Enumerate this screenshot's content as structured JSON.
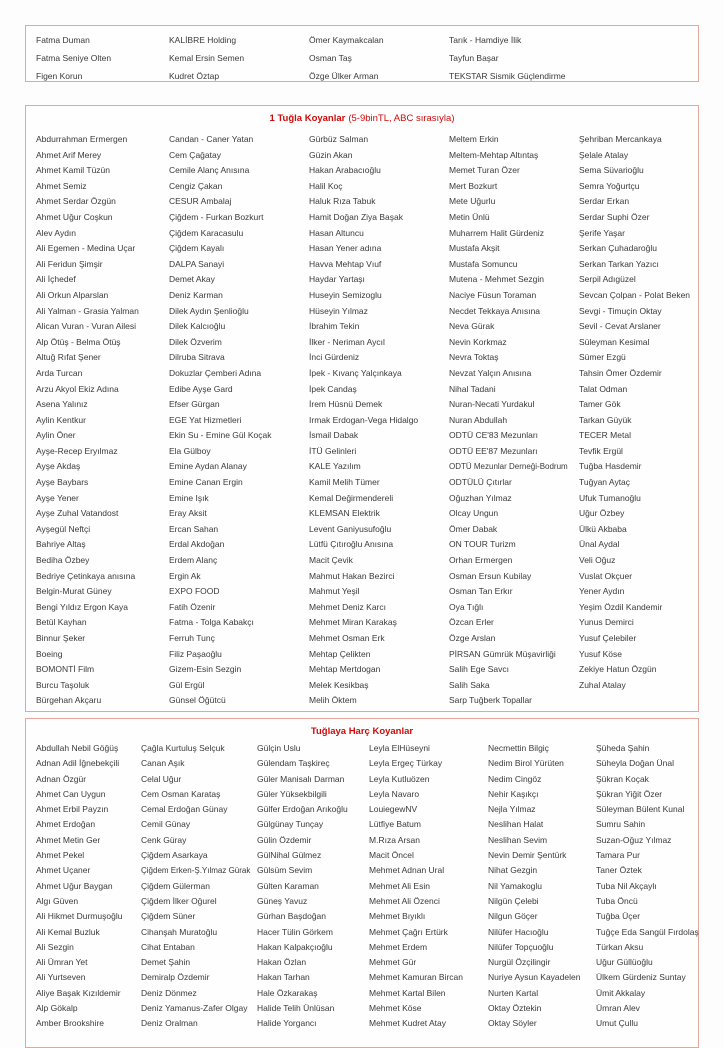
{
  "page": {
    "background": "#fdfdfd",
    "text_color": "#3a3a3a",
    "accent_red": "#cf0a0a",
    "border_color": "#e3a79e"
  },
  "section_top": {
    "columns": [
      [
        "Fatma Duman",
        "Fatma Seniye Olten",
        "Figen Korun"
      ],
      [
        "KALİBRE Holding",
        "Kemal Ersin Semen",
        "Kudret Öztap"
      ],
      [
        "Ömer Kaymakcalan",
        "Osman Taş",
        "Özge Ülker Arman"
      ],
      [
        "Tarık - Hamdiye İlik",
        "Tayfun Başar",
        "TEKSTAR Sismik Güçlendirme"
      ],
      []
    ]
  },
  "section_one_brick": {
    "title_bold": "1 Tuğla Koyanlar",
    "title_note": "(5-9binTL, ABC sırasıyla)",
    "columns": [
      [
        "Abdurrahman Ermergen",
        "Ahmet Arif Merey",
        "Ahmet Kamil Tüzün",
        "Ahmet Semiz",
        "Ahmet Serdar Özgün",
        "Ahmet Uğur Coşkun",
        "Alev Aydın",
        "Ali Egemen - Medina Uçar",
        "Ali Feridun Şimşir",
        "Ali İçhedef",
        "Ali Orkun Alparslan",
        "Ali Yalman - Grasia Yalman",
        "Alican Vuran - Vuran Ailesi",
        "Alp Ötüş - Belma Ötüş",
        "Altuğ Rıfat Şener",
        "Arda Turcan",
        "Arzu Akyol Ekiz Adına",
        "Asena Yalınız",
        "Aylin Kentkur",
        "Aylin Öner",
        "Ayşe-Recep Eryılmaz",
        "Ayşe Akdaş",
        "Ayşe Baybars",
        "Ayşe Yener",
        "Ayşe Zuhal Vatandost",
        "Ayşegül Neftçi",
        "Bahriye Altaş",
        "Bediha Özbey",
        "Bedriye Çetinkaya anısına",
        "Belgin-Murat Güney",
        "Bengi Yıldız Ergon Kaya",
        "Betül Kayhan",
        "Binnur Şeker",
        "Boeing",
        "BOMONTİ Film",
        "Burcu Taşoluk",
        "Bürgehan Akçaru"
      ],
      [
        "Candan - Caner Yatan",
        "Cem Çağatay",
        "Cemile Alanç Anısına",
        "Cengiz Çakan",
        "CESUR Ambalaj",
        "Çiğdem - Furkan Bozkurt",
        "Çiğdem Karacasulu",
        "Çiğdem Kayalı",
        "DALPA Sanayi",
        "Demet Akay",
        "Deniz Karman",
        "Dilek Aydın Şenlioğlu",
        "Dilek Kalcıoğlu",
        "Dilek Özverim",
        "Dilruba Sitrava",
        "Dokuzlar Çemberi Adına",
        "Edibe Ayşe Gard",
        "Efser Gürgan",
        "EGE Yat Hizmetleri",
        "Ekin Su - Emine Gül Koçak",
        "Ela Gülboy",
        "Emine Aydan Alanay",
        "Emine Canan Ergin",
        "Emine Işık",
        "Eray Aksit",
        "Ercan Sahan",
        "Erdal Akdoğan",
        "Erdem Alanç",
        "Ergin Ak",
        "EXPO FOOD",
        "Fatih Özenir",
        "Fatma - Tolga Kabakçı",
        "Ferruh Tunç",
        "Filiz Paşaoğlu",
        "Gizem-Esin Sezgin",
        "Gül Ergül",
        "Günsel Öğütcü"
      ],
      [
        "Gürbüz Salman",
        "Güzin Akan",
        "Hakan Arabacıoğlu",
        "Halil Koç",
        "Haluk Rıza Tabuk",
        "Hamit Doğan Ziya Başak",
        "Hasan Altuncu",
        "Hasan Yener adına",
        "Havva Mehtap Vıuf",
        "Haydar Yartaşı",
        "Huseyin Semizoglu",
        "Hüseyin Yılmaz",
        "İbrahim Tekin",
        "İlker - Neriman Aycıl",
        "İnci Gürdeniz",
        "İpek - Kıvanç Yalçınkaya",
        "İpek Candaş",
        "İrem Hüsnü Demek",
        "Irmak Erdogan-Vega Hidalgo",
        "İsmail Dabak",
        "İTÜ Gelinleri",
        "KALE Yazılım",
        "Kamil Melih Tümer",
        "Kemal Değirmendereli",
        "KLEMSAN Elektrik",
        "Levent Ganiyusufoğlu",
        "Lütfü Çıtıroğlu Anısına",
        "Macit Çevik",
        "Mahmut Hakan Bezirci",
        "Mahmut Yeşil",
        "Mehmet Deniz Karcı",
        "Mehmet Miran Karakaş",
        "Mehmet Osman Erk",
        "Mehtap Çelikten",
        "Mehtap Mertdogan",
        "Melek Kesikbaş",
        "Melih Öktem"
      ],
      [
        "Meltem Erkin",
        "Meltem-Mehtap Altıntaş",
        "Memet Turan Özer",
        "Mert Bozkurt",
        "Mete Uğurlu",
        "Metin Ünlü",
        "Muharrem Halit Gürdeniz",
        "Mustafa Akşit",
        "Mustafa Somuncu",
        "Mutena - Mehmet Sezgin",
        "Naciye Füsun Toraman",
        "Necdet Tekkaya Anısına",
        "Neva Gürak",
        "Nevin Korkmaz",
        "Nevra Toktaş",
        "Nevzat Yalçın Anısına",
        "Nihal Tadani",
        "Nuran-Necati Yurdakul",
        "Nuran Abdullah",
        "ODTÜ CE'83 Mezunları",
        "ODTÜ EE'87 Mezunları",
        "ODTÜ Mezunlar Derneği-Bodrum",
        "ODTÜLÜ Çıtırlar",
        "Oğuzhan Yılmaz",
        "Olcay Ungun",
        "Ömer Dabak",
        "ON TOUR Turizm",
        "Orhan Ermergen",
        "Osman Ersun Kubilay",
        "Osman Tan Erkır",
        "Oya Tığlı",
        "Özcan Erler",
        "Özge Arslan",
        "PİRSAN Gümrük Müşavirliği",
        "Salih Ege Savcı",
        "Salih Saka",
        "Sarp Tuğberk Topallar"
      ],
      [
        "Şehriban Mercankaya",
        "Şelale Atalay",
        "Sema Süvarioğlu",
        "Semra Yoğurtçu",
        "Serdar Erkan",
        "Serdar Suphi Özer",
        "Şerife Yaşar",
        "Serkan Çuhadaroğlu",
        "Serkan Tarkan Yazıcı",
        "Serpil Adıgüzel",
        "Sevcan Çolpan - Polat Beken",
        "Sevgi - Timuçin Oktay",
        "Sevil - Cevat Arslaner",
        "Süleyman Kesimal",
        "Sümer Ezgü",
        "Tahsin Ömer Özdemir",
        "Talat Odman",
        "Tamer Gök",
        "Tarkan Güyük",
        "TECER Metal",
        "Tevfik Ergül",
        "Tuğba Hasdemir",
        "Tuğyan Aytaç",
        "Ufuk Tumanoğlu",
        "Uğur Özbey",
        "Ülkü Akbaba",
        "Ünal Aydal",
        "Veli Oğuz",
        "Vuslat Okçuer",
        "Yener Aydın",
        "Yeşim Özdil Kandemir",
        "Yunus Demirci",
        "Yusuf Çelebiler",
        "Yusuf Köse",
        "Zekiye Hatun Özgün",
        "Zuhal Atalay"
      ]
    ]
  },
  "section_mortar": {
    "title_bold": "Tuğlaya Harç Koyanlar",
    "columns": [
      [
        "Abdullah Nebil Göğüş",
        "Adnan Adil İğnebekçili",
        "Adnan Özgür",
        "Ahmet Can Uygun",
        "Ahmet Erbil Payzın",
        "Ahmet Erdoğan",
        "Ahmet Metin Ger",
        "Ahmet Pekel",
        "Ahmet Uçaner",
        "Ahmet Uğur Baygan",
        "Algı Güven",
        "Ali Hikmet Durmuşoğlu",
        "Ali Kemal Buzluk",
        "Ali Sezgin",
        "Ali Ümran Yet",
        "Ali Yurtseven",
        "Aliye Başak Kızıldemir",
        "Alp Gökalp",
        "Amber Brookshire"
      ],
      [
        "Çağla Kurtuluş Selçuk",
        "Canan Aşık",
        "Celal Uğur",
        "Cem Osman Karataş",
        "Cemal Erdoğan Günay",
        "Cemil Günay",
        "Cenk Güray",
        "Çiğdem Asarkaya",
        "Çiğdem Erken-Ş.Yılmaz Gürak",
        "Çiğdem Gülerman",
        "Çiğdem İlker Oğurel",
        "Çiğdem Süner",
        "Cihanşah Muratoğlu",
        "Cihat Entaban",
        "Demet Şahin",
        "Demiralp Özdemir",
        "Deniz Dönmez",
        "Deniz Yamanus-Zafer Olgay",
        "Deniz Oralman"
      ],
      [
        "Gülçin Uslu",
        "Gülendam Taşkireç",
        "Güler Manisalı Darman",
        "Güler Yüksekbilgili",
        "Gülfer Erdoğan Arıkoğlu",
        "Gülgünay Tunçay",
        "Gülin Özdemir",
        "GülNihal Gülmez",
        "Gülsüm Sevim",
        "Gülten Karaman",
        "Güneş Yavuz",
        "Gürhan Başdoğan",
        "Hacer Tülin Görkem",
        "Hakan Kalpakçıoğlu",
        "Hakan Özlan",
        "Hakan Tarhan",
        "Hale Özkarakaş",
        "Halide Telih Ünlüsan",
        "Halide Yorgancı"
      ],
      [
        "Leyla ElHüseyni",
        "Leyla Ergeç Türkay",
        "Leyla Kutluözen",
        "Leyla Navaro",
        "LouiegewNV",
        "Lütfiye Batum",
        "M.Rıza Arsan",
        "Macit Öncel",
        "Mehmet Adnan Ural",
        "Mehmet Ali Esin",
        "Mehmet Ali Özenci",
        "Mehmet Bıyıklı",
        "Mehmet Çağrı Ertürk",
        "Mehmet Erdem",
        "Mehmet Gür",
        "Mehmet Kamuran Bircan",
        "Mehmet Kartal Bilen",
        "Mehmet Köse",
        "Mehmet Kudret Atay"
      ],
      [
        "Necmettin Bilgiç",
        "Nedim Birol Yürüten",
        "Nedim Cingöz",
        "Nehir Kaşıkçı",
        "Nejla Yılmaz",
        "Neslihan Halat",
        "Neslihan Sevim",
        "Nevin Demir Şentürk",
        "Nihat Gezgin",
        "Nil Yamakoglu",
        "Nilgün Çelebi",
        "Nilgun Göçer",
        "Nilüfer Hacıoğlu",
        "Nilüfer Topçuoğlu",
        "Nurgül Özçilingir",
        "Nuriye Aysun Kayadelen",
        "Nurten Kartal",
        "Oktay Öztekin",
        "Oktay Söyler"
      ],
      [
        "Şüheda Şahin",
        "Süheyla Doğan Ünal",
        "Şükran Koçak",
        "Şükran Yiğit Özer",
        "Süleyman Bülent Kunal",
        "Sumru Sahin",
        "Suzan-Oğuz Yılmaz",
        "Tamara Pur",
        "Taner Öztek",
        "Tuba Nil Akçaylı",
        "Tuba Öncü",
        "Tuğba Üçer",
        "Tuğçe Eda Sangül Fırdolaş",
        "Türkan Aksu",
        "Uğur Güllüoğlu",
        "Ülkem Gürdeniz Suntay",
        "Ümit Akkalay",
        "Ümran Alev",
        "Umut Çullu"
      ]
    ]
  }
}
